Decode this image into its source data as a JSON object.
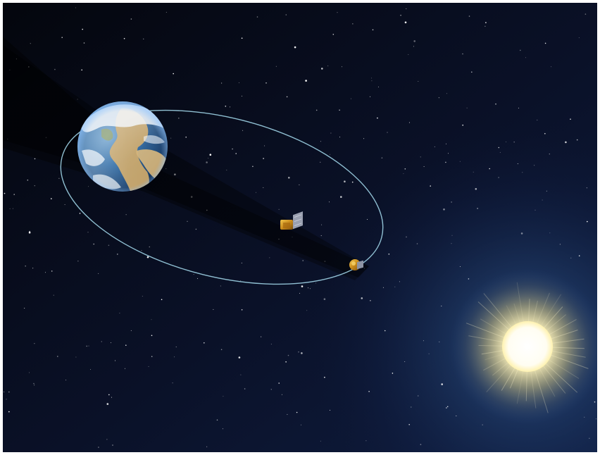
{
  "scene": {
    "subject": "space-illustration",
    "colors": {
      "sky_top": "#05070f",
      "sky_mid": "#0c1430",
      "sky_glow": "#1d3a6e",
      "orbit": "#9fd3e6",
      "sun_core": "#ffffff",
      "sun_halo": "#ffe9a0",
      "earth_ocean": "#1e4f86",
      "earth_land": "#c9a567",
      "earth_cloud": "#e8eef5",
      "spacecraft_gold": "#c98a1a",
      "spacecraft_panel": "#9aa0b0",
      "shadow": "#000000"
    },
    "icons": [
      "earth-icon",
      "sun-icon",
      "spacecraft-icon",
      "spacecraft-icon"
    ]
  }
}
